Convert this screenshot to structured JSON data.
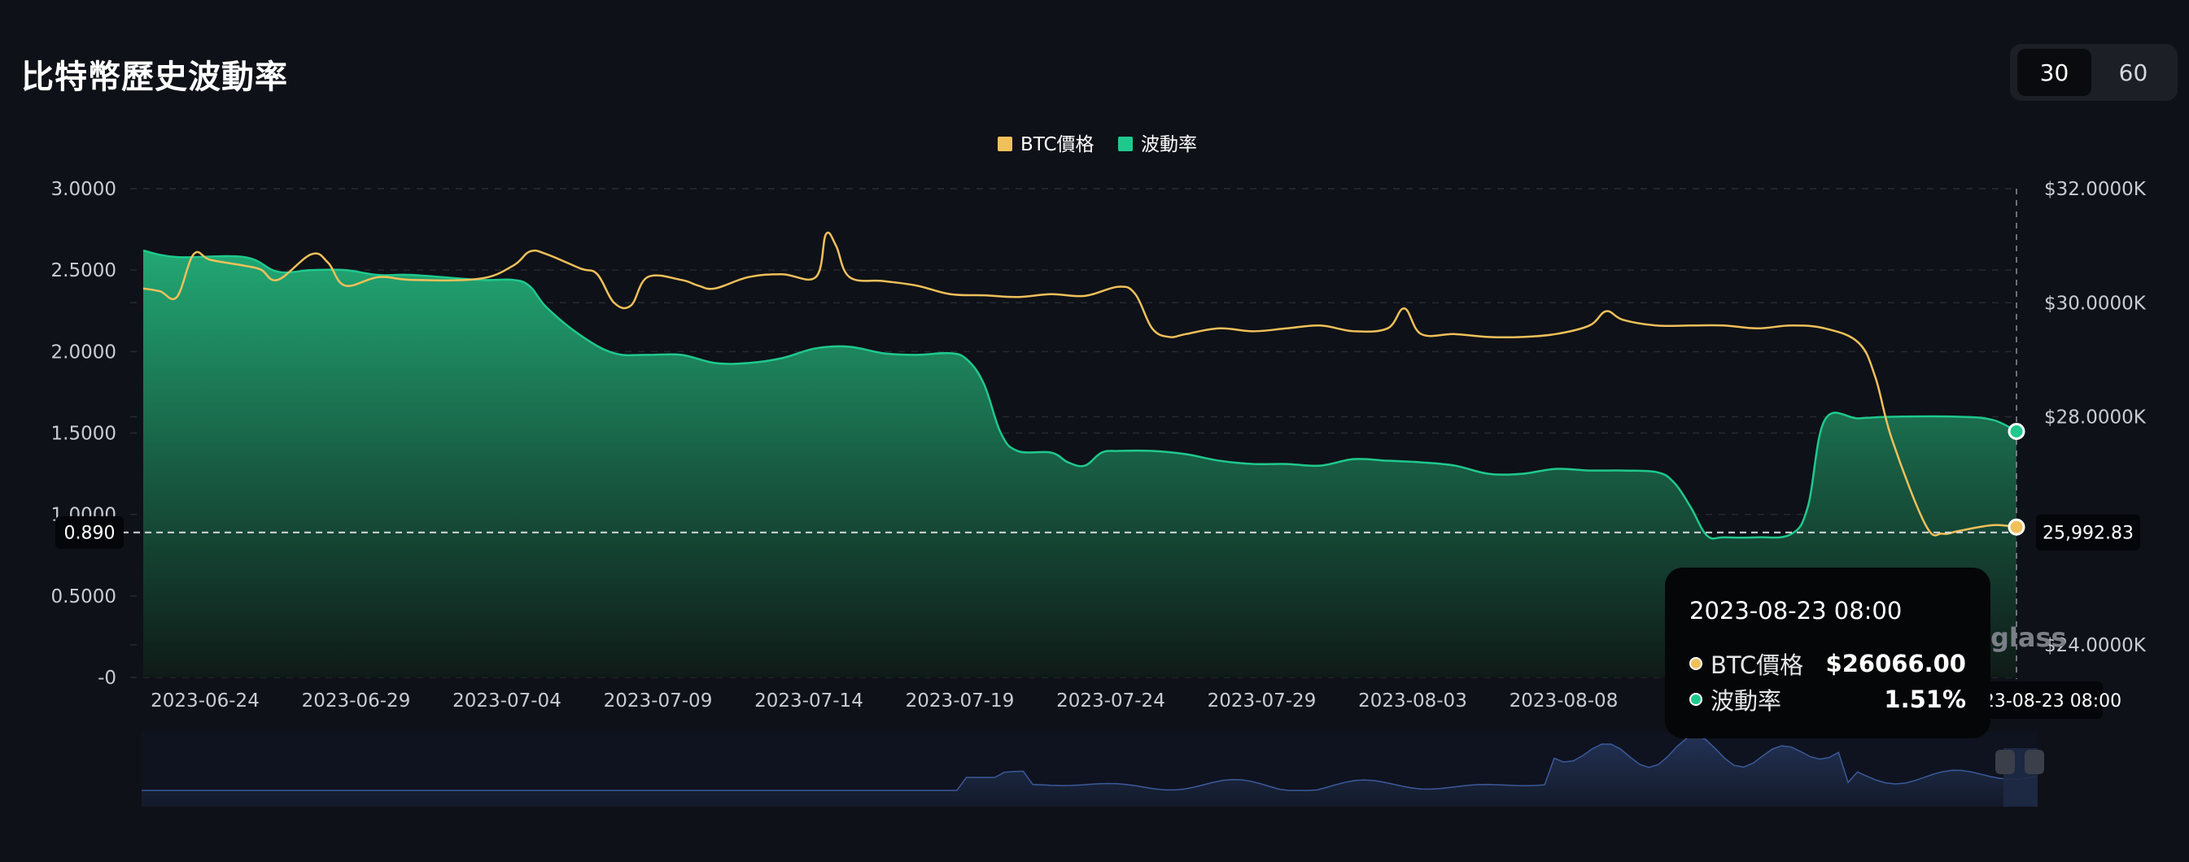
{
  "header": {
    "title": "比特幣歷史波動率",
    "periods": [
      "30",
      "60"
    ],
    "active_period": "30"
  },
  "colors": {
    "background": "#0e1117",
    "btc": "#f0c05a",
    "volatility": "#1fc98e",
    "navigator": "#3b5a9a"
  },
  "chart_data": {
    "type": "area",
    "legend": {
      "position": "top-center",
      "items": [
        "BTC價格",
        "波動率"
      ]
    },
    "x_labels": [
      "2023-06-24",
      "2023-06-29",
      "2023-07-04",
      "2023-07-09",
      "2023-07-14",
      "2023-07-19",
      "2023-07-24",
      "2023-07-29",
      "2023-08-03",
      "2023-08-08"
    ],
    "y_left": {
      "ticks": [
        "3.0000",
        "2.5000",
        "2.0000",
        "1.5000",
        "1.0000",
        "0.5000",
        "-0"
      ],
      "range": [
        0,
        3
      ]
    },
    "y_right": {
      "ticks": [
        "$32.0000K",
        "$30.0000K",
        "$28.0000K",
        "$24.0000K"
      ],
      "range": [
        23500,
        32000
      ]
    },
    "grid": true,
    "crosshair": {
      "left_label": "0.890",
      "right_label": "25,992.83",
      "x_label": "2023-08-23 08:00"
    },
    "series": [
      {
        "name": "波動率",
        "axis": "left",
        "type": "area",
        "points": [
          [
            0,
            2.62
          ],
          [
            1,
            2.58
          ],
          [
            3,
            2.58
          ],
          [
            4,
            2.49
          ],
          [
            5,
            2.5
          ],
          [
            6,
            2.5
          ],
          [
            7,
            2.47
          ],
          [
            8,
            2.47
          ],
          [
            10,
            2.44
          ],
          [
            11,
            2.44
          ],
          [
            11.5,
            2.4
          ],
          [
            12,
            2.27
          ],
          [
            13,
            2.1
          ],
          [
            14,
            1.99
          ],
          [
            15,
            1.98
          ],
          [
            16,
            1.98
          ],
          [
            17,
            1.93
          ],
          [
            18,
            1.93
          ],
          [
            19,
            1.96
          ],
          [
            20,
            2.02
          ],
          [
            21,
            2.03
          ],
          [
            22,
            1.99
          ],
          [
            23,
            1.98
          ],
          [
            24,
            1.99
          ],
          [
            24.5,
            1.95
          ],
          [
            25,
            1.8
          ],
          [
            25.5,
            1.5
          ],
          [
            26,
            1.39
          ],
          [
            27,
            1.38
          ],
          [
            27.5,
            1.32
          ],
          [
            28,
            1.3
          ],
          [
            28.5,
            1.38
          ],
          [
            29,
            1.39
          ],
          [
            30,
            1.39
          ],
          [
            31,
            1.37
          ],
          [
            32,
            1.33
          ],
          [
            33,
            1.31
          ],
          [
            34,
            1.31
          ],
          [
            35,
            1.3
          ],
          [
            36,
            1.34
          ],
          [
            37,
            1.33
          ],
          [
            38,
            1.32
          ],
          [
            39,
            1.3
          ],
          [
            40,
            1.25
          ],
          [
            41,
            1.25
          ],
          [
            42,
            1.28
          ],
          [
            43,
            1.27
          ],
          [
            44,
            1.27
          ],
          [
            45,
            1.26
          ],
          [
            45.5,
            1.2
          ],
          [
            46,
            1.05
          ],
          [
            46.5,
            0.87
          ],
          [
            47,
            0.86
          ],
          [
            48,
            0.86
          ],
          [
            49,
            0.88
          ],
          [
            49.5,
            1.05
          ],
          [
            50,
            1.58
          ],
          [
            51,
            1.59
          ],
          [
            52,
            1.6
          ],
          [
            54,
            1.6
          ],
          [
            55,
            1.58
          ],
          [
            55.7,
            1.51
          ]
        ]
      },
      {
        "name": "BTC價格",
        "axis": "right",
        "type": "line",
        "points": [
          [
            0,
            30250
          ],
          [
            0.5,
            30200
          ],
          [
            1,
            30100
          ],
          [
            1.5,
            30850
          ],
          [
            2,
            30750
          ],
          [
            3,
            30650
          ],
          [
            3.5,
            30580
          ],
          [
            4,
            30400
          ],
          [
            5,
            30850
          ],
          [
            5.5,
            30700
          ],
          [
            6,
            30300
          ],
          [
            7,
            30450
          ],
          [
            8,
            30400
          ],
          [
            10,
            30420
          ],
          [
            11,
            30650
          ],
          [
            11.5,
            30900
          ],
          [
            12,
            30850
          ],
          [
            13,
            30600
          ],
          [
            13.5,
            30500
          ],
          [
            14,
            30000
          ],
          [
            14.5,
            29950
          ],
          [
            15,
            30450
          ],
          [
            16,
            30400
          ],
          [
            16.5,
            30300
          ],
          [
            17,
            30250
          ],
          [
            18,
            30450
          ],
          [
            19,
            30500
          ],
          [
            20,
            30450
          ],
          [
            20.3,
            31200
          ],
          [
            20.6,
            31000
          ],
          [
            21,
            30450
          ],
          [
            22,
            30380
          ],
          [
            23,
            30300
          ],
          [
            24,
            30150
          ],
          [
            25,
            30130
          ],
          [
            26,
            30100
          ],
          [
            27,
            30150
          ],
          [
            28,
            30120
          ],
          [
            29,
            30280
          ],
          [
            29.5,
            30150
          ],
          [
            30,
            29550
          ],
          [
            30.5,
            29400
          ],
          [
            31,
            29450
          ],
          [
            32,
            29550
          ],
          [
            33,
            29500
          ],
          [
            34,
            29550
          ],
          [
            35,
            29600
          ],
          [
            36,
            29500
          ],
          [
            37,
            29550
          ],
          [
            37.5,
            29900
          ],
          [
            38,
            29450
          ],
          [
            39,
            29450
          ],
          [
            40,
            29400
          ],
          [
            41,
            29400
          ],
          [
            42,
            29450
          ],
          [
            43,
            29600
          ],
          [
            43.5,
            29850
          ],
          [
            44,
            29700
          ],
          [
            45,
            29600
          ],
          [
            46,
            29600
          ],
          [
            47,
            29600
          ],
          [
            48,
            29550
          ],
          [
            49,
            29600
          ],
          [
            50,
            29550
          ],
          [
            51,
            29300
          ],
          [
            51.5,
            28700
          ],
          [
            52,
            27600
          ],
          [
            53,
            26100
          ],
          [
            53.5,
            25950
          ],
          [
            54,
            26000
          ],
          [
            55,
            26100
          ],
          [
            55.7,
            26066
          ]
        ]
      }
    ],
    "x_index_range": [
      0,
      55.7
    ]
  },
  "tooltip": {
    "time": "2023-08-23 08:00",
    "rows": [
      {
        "name": "BTC價格",
        "value": "$26066.00",
        "color": "#f0c05a"
      },
      {
        "name": "波動率",
        "value": "1.51%",
        "color": "#1fc98e"
      }
    ]
  },
  "watermark": "glass"
}
